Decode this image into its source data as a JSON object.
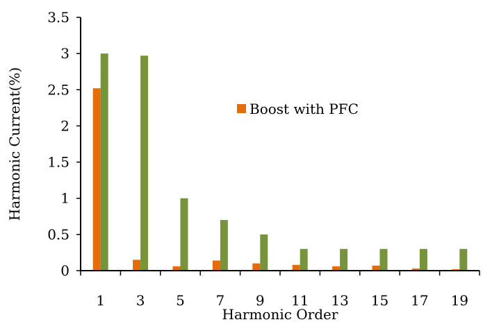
{
  "chart_data": {
    "type": "bar",
    "xlabel": "Harmonic Order",
    "ylabel": "Harmonic Current(%)",
    "categories": [
      "1",
      "3",
      "5",
      "7",
      "9",
      "11",
      "13",
      "15",
      "17",
      "19"
    ],
    "ylim": [
      0,
      3.5
    ],
    "yticks": [
      "0",
      "0.5",
      "1",
      "1.5",
      "2",
      "2.5",
      "3",
      "3.5"
    ],
    "grid": false,
    "legend_position": "center-right",
    "series": [
      {
        "name": "Boost with PFC",
        "color": "#e46c0a",
        "values": [
          2.52,
          0.15,
          0.06,
          0.14,
          0.1,
          0.08,
          0.06,
          0.07,
          0.03,
          0.02
        ]
      },
      {
        "color": "#77933c",
        "values": [
          3.0,
          2.97,
          1.0,
          0.7,
          0.5,
          0.3,
          0.3,
          0.3,
          0.3,
          0.3
        ]
      }
    ]
  }
}
